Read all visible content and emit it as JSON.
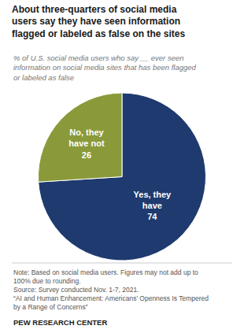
{
  "chart_data": {
    "type": "pie",
    "title": "About three-quarters of social media\nusers say they have seen information\nflagged or labeled as false on the sites",
    "subtitle": "% of U.S. social media users who say __ ever seen\ninformation on social media sites that has been flagged\nor labeled as false",
    "categories": [
      "Yes, they\nhave",
      "No, they\nhave not"
    ],
    "values": [
      74,
      26
    ],
    "colors": [
      "#1e3a6e",
      "#8a9a3a"
    ],
    "data_labels": true,
    "annotations": [
      "Note: Based on social media users. Figures may not add up to\n100% due to rounding.\nSource: Survey conducted Nov. 1-7, 2021.\n“AI and Human Enhancement: Americans’ Openness Is Tempered\nby a Range of Concerns”",
      "PEW RESEARCH CENTER"
    ]
  }
}
